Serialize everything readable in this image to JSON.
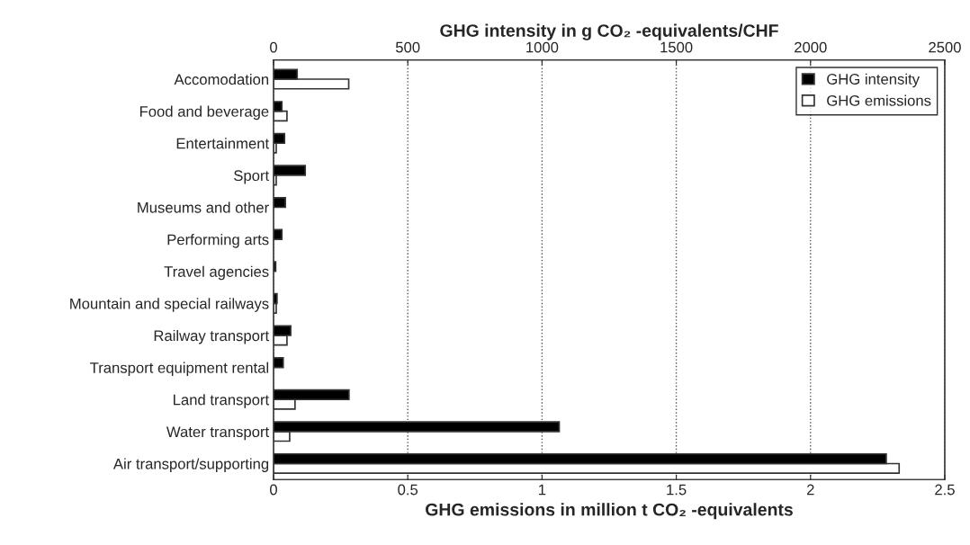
{
  "chart_data": {
    "type": "bar",
    "orientation": "horizontal",
    "categories": [
      "Accomodation",
      "Food and beverage",
      "Entertainment",
      "Sport",
      "Museums and other",
      "Performing arts",
      "Travel agencies",
      "Mountain and special railways",
      "Railway transport",
      "Transport equipment rental",
      "Land transport",
      "Water transport",
      "Air transport/supporting"
    ],
    "series": [
      {
        "name": "GHG intensity",
        "color": "#000000",
        "axis": "x2",
        "values": [
          88,
          31,
          41,
          118,
          44,
          31,
          8,
          13,
          64,
          36,
          281,
          1064,
          2282
        ]
      },
      {
        "name": "GHG emissions",
        "color": "#ffffff",
        "values": [
          0.28,
          0.05,
          0.01,
          0.01,
          0.0,
          0.0,
          0.0,
          0.01,
          0.05,
          0.0,
          0.08,
          0.06,
          2.33
        ]
      }
    ],
    "xlabel": "GHG emissions in million t CO₂ -equivalents",
    "x2label": "GHG intensity in g CO₂ -equivalents/CHF",
    "xlim": [
      0,
      2.5
    ],
    "xticks": [
      0,
      0.5,
      1,
      1.5,
      2,
      2.5
    ],
    "x2lim": [
      0,
      2500
    ],
    "x2ticks": [
      0,
      500,
      1000,
      1500,
      2000,
      2500
    ],
    "grid": "x",
    "legend": "top right"
  }
}
